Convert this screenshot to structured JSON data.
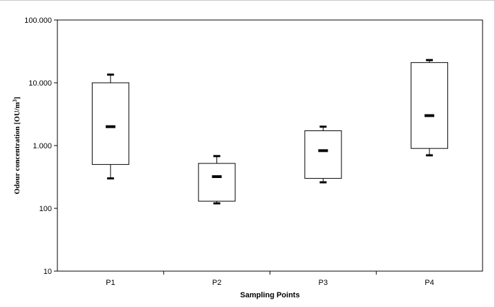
{
  "chart_data": {
    "type": "box",
    "title": "",
    "xlabel": "Sampling Points",
    "ylabel": "Odour concentration [OU/m",
    "ylabel_sup": "3",
    "ylabel_end": "]",
    "yscale": "log",
    "ylim": [
      10,
      100000
    ],
    "yticks": [
      {
        "value": 100000,
        "label": "100.000"
      },
      {
        "value": 10000,
        "label": "10.000"
      },
      {
        "value": 1000,
        "label": "1.000"
      },
      {
        "value": 100,
        "label": "100"
      },
      {
        "value": 10,
        "label": "10"
      }
    ],
    "grid": false,
    "categories": [
      "P1",
      "P2",
      "P3",
      "P4"
    ],
    "boxes": [
      {
        "category": "P1",
        "min": 300,
        "q1": 500,
        "median": 2000,
        "q3": 10000,
        "max": 13500
      },
      {
        "category": "P2",
        "min": 120,
        "q1": 130,
        "median": 320,
        "q3": 520,
        "max": 680
      },
      {
        "category": "P3",
        "min": 260,
        "q1": 300,
        "median": 830,
        "q3": 1720,
        "max": 2000
      },
      {
        "category": "P4",
        "min": 700,
        "q1": 900,
        "median": 3000,
        "q3": 21000,
        "max": 23000
      }
    ]
  }
}
